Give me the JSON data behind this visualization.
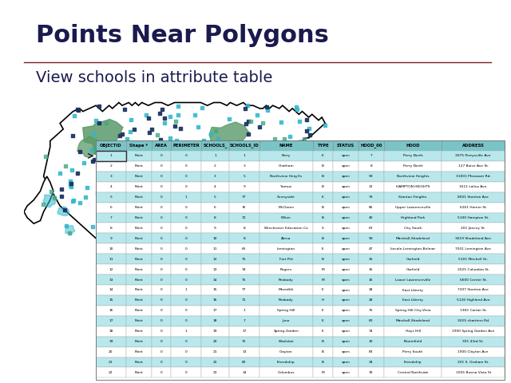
{
  "title": "Points Near Polygons",
  "subtitle": "View schools in attribute table",
  "title_fontsize": 22,
  "subtitle_fontsize": 14,
  "title_color": "#1a1a4e",
  "subtitle_color": "#1a1a4e",
  "separator_color": "#7a2020",
  "bg_color": "#ffffff",
  "table_headers": [
    "OBJECTID",
    "Shape *",
    "AREA",
    "PERIMETER",
    "SCHOOLS_",
    "SCHOOLS_ID",
    "NAME",
    "TYPE",
    "STATUS",
    "HOOD_00",
    "HOOD",
    "ADDRESS"
  ],
  "table_rows": [
    [
      "1",
      "Point",
      "0",
      "0",
      "1",
      "1",
      "Perry",
      "E",
      "open",
      "7",
      "Perry North",
      "3075 Perrysville Ave"
    ],
    [
      "2",
      "Point",
      "0",
      "0",
      "2",
      "3",
      "Chatham",
      "B",
      "open",
      "8",
      "Perry North",
      "127 Boice Ave St."
    ],
    [
      "3",
      "Point",
      "0",
      "0",
      "3",
      "5",
      "Northview Heig Es",
      "B",
      "open",
      "59",
      "Northview Heights",
      "31001 Pheasant Rd."
    ],
    [
      "4",
      "Point",
      "0",
      "0",
      "4",
      "9",
      "Yarrow",
      "B",
      "open",
      "13",
      "HAMPTON HEIGHTS",
      "1611 Lalius Ave."
    ],
    [
      "5",
      "Point",
      "0",
      "1",
      "5",
      "77",
      "Sunnyside",
      "E",
      "open",
      "79",
      "Stanton Heights",
      "8001 Stanton Ave"
    ],
    [
      "6",
      "Point",
      "0",
      "0",
      "6",
      "76",
      "McClaren",
      "B",
      "open",
      "86",
      "Upper Lawrenceville",
      "6261 Horner St."
    ],
    [
      "7",
      "Point",
      "0",
      "0",
      "8",
      "72",
      "F.Bion",
      "B",
      "open",
      "40",
      "Highland Park",
      "5100 Hampton St."
    ],
    [
      "8",
      "Point",
      "0",
      "0",
      "9",
      "8",
      "Winchester Education Co",
      "S",
      "open",
      "63",
      "City South",
      "201 Jancey St."
    ],
    [
      "9",
      "Point",
      "0",
      "0",
      "10",
      "8",
      "Alena",
      "B",
      "open",
      "58",
      "Marshall-Shadeland",
      "3619 Shadeland Ave"
    ],
    [
      "10",
      "Point",
      "0",
      "0",
      "11",
      "65",
      "Lemington",
      "E",
      "open",
      "47",
      "Lincoln-Lemington-Belmar",
      "7001 Lemington Ave"
    ],
    [
      "11",
      "Point",
      "0",
      "0",
      "12",
      "75",
      "Fort Pitt",
      "B",
      "open",
      "35",
      "Garfield",
      "5101 Mitchell St."
    ],
    [
      "12",
      "Point",
      "0",
      "0",
      "13",
      "74",
      "Rogers",
      "M",
      "open",
      "36",
      "Garfield",
      "2025 Columbia St."
    ],
    [
      "13",
      "Point",
      "0",
      "0",
      "14",
      "75",
      "Peabody",
      "M",
      "open",
      "16",
      "Lower Lawrenceville",
      "6600 Center St."
    ],
    [
      "14",
      "Point",
      "0",
      "1",
      "15",
      "77",
      "Meredith",
      "E",
      "open",
      "28",
      "East Liberty",
      "7207 Stanton Ave"
    ],
    [
      "15",
      "Point",
      "0",
      "0",
      "16",
      "71",
      "Peabody",
      "H",
      "open",
      "28",
      "East Liberty",
      "5126 Highland Ave"
    ],
    [
      "16",
      "Point",
      "0",
      "0",
      "17",
      "1",
      "Spring Hill",
      "E",
      "open",
      "75",
      "Spring Hill-City-View",
      "1365 Carran St."
    ],
    [
      "17",
      "Point",
      "0",
      "0",
      "18",
      "7",
      "Juno",
      "E",
      "open",
      "60",
      "Marshall-Shadeland",
      "3025 chartiers Rd."
    ],
    [
      "18",
      "Point",
      "0",
      "1",
      "19",
      "17",
      "Spring-Garden",
      "E",
      "open",
      "74",
      "Hays Hill",
      "1900 Spring Garden Ave"
    ],
    [
      "19",
      "Point",
      "0",
      "0",
      "20",
      "75",
      "Woolslair",
      "B",
      "open",
      "10",
      "Bloomfield",
      "301 43rd St."
    ],
    [
      "20",
      "Point",
      "0",
      "0",
      "21",
      "13",
      "Clayton",
      "B",
      "open",
      "83",
      "Perry South",
      "1900 Clayton Ave"
    ],
    [
      "21",
      "Point",
      "0",
      "0",
      "22",
      "80",
      "Friendship",
      "B",
      "open",
      "34",
      "Friendship",
      "201 S. Graham St."
    ],
    [
      "22",
      "Point",
      "0",
      "0",
      "23",
      "14",
      "Columbus",
      "M",
      "open",
      "19",
      "Central Northside",
      "1005 Buena Vista St"
    ]
  ],
  "header_bg": "#7ac4c8",
  "row_bg_even": "#b8e8ec",
  "row_bg_odd": "#ffffff",
  "map_bg": "#ffffff",
  "polygon_color": "#4a9e6e",
  "point_color_1": "#30b8cc",
  "point_color_2": "#1a3060",
  "point_color_3": "#40a880"
}
